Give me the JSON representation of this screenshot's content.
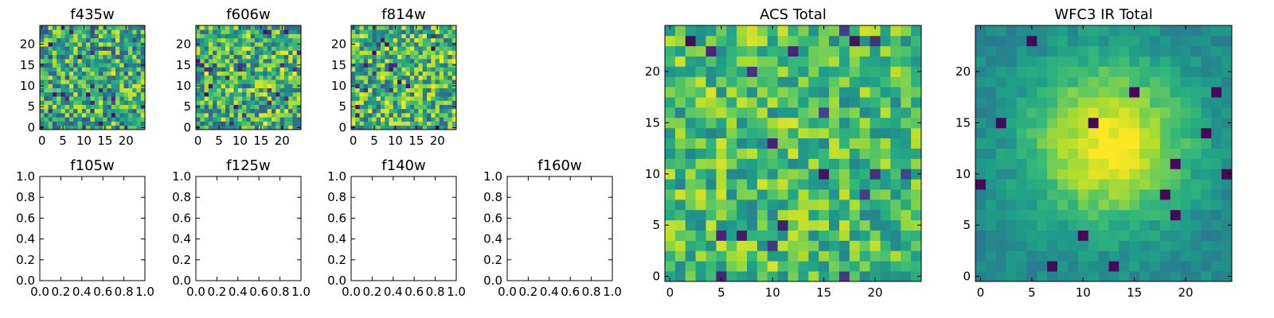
{
  "figure": {
    "colormap": "viridis"
  },
  "chart_data": [
    {
      "id": "f435w",
      "type": "heatmap",
      "title": "f435w",
      "grid_size": 25,
      "xlim": [
        -0.5,
        24.5
      ],
      "ylim": [
        -0.5,
        24.5
      ],
      "xticks": [
        0,
        5,
        10,
        15,
        20
      ],
      "yticks": [
        0,
        5,
        10,
        15,
        20
      ],
      "pattern": "noise",
      "seed": 11,
      "vrange": [
        0.25,
        0.95
      ]
    },
    {
      "id": "f606w",
      "type": "heatmap",
      "title": "f606w",
      "grid_size": 25,
      "xlim": [
        -0.5,
        24.5
      ],
      "ylim": [
        -0.5,
        24.5
      ],
      "xticks": [
        0,
        5,
        10,
        15,
        20
      ],
      "yticks": [
        0,
        5,
        10,
        15,
        20
      ],
      "pattern": "noise",
      "seed": 23,
      "vrange": [
        0.3,
        1.0
      ]
    },
    {
      "id": "f814w",
      "type": "heatmap",
      "title": "f814w",
      "grid_size": 25,
      "xlim": [
        -0.5,
        24.5
      ],
      "ylim": [
        -0.5,
        24.5
      ],
      "xticks": [
        0,
        5,
        10,
        15,
        20
      ],
      "yticks": [
        0,
        5,
        10,
        15,
        20
      ],
      "pattern": "noise",
      "seed": 37,
      "vrange": [
        0.3,
        1.0
      ]
    },
    {
      "id": "f105w",
      "type": "empty",
      "title": "f105w",
      "xlim": [
        0,
        1
      ],
      "ylim": [
        0,
        1
      ],
      "xticks": [
        "0.0",
        "0.2",
        "0.4",
        "0.6",
        "0.8",
        "1.0"
      ],
      "yticks": [
        "0.0",
        "0.2",
        "0.4",
        "0.6",
        "0.8",
        "1.0"
      ]
    },
    {
      "id": "f125w",
      "type": "empty",
      "title": "f125w",
      "xlim": [
        0,
        1
      ],
      "ylim": [
        0,
        1
      ],
      "xticks": [
        "0.0",
        "0.2",
        "0.4",
        "0.6",
        "0.8",
        "1.0"
      ],
      "yticks": [
        "0.0",
        "0.2",
        "0.4",
        "0.6",
        "0.8",
        "1.0"
      ]
    },
    {
      "id": "f140w",
      "type": "empty",
      "title": "f140w",
      "xlim": [
        0,
        1
      ],
      "ylim": [
        0,
        1
      ],
      "xticks": [
        "0.0",
        "0.2",
        "0.4",
        "0.6",
        "0.8",
        "1.0"
      ],
      "yticks": [
        "0.0",
        "0.2",
        "0.4",
        "0.6",
        "0.8",
        "1.0"
      ]
    },
    {
      "id": "f160w",
      "type": "empty",
      "title": "f160w",
      "xlim": [
        0,
        1
      ],
      "ylim": [
        0,
        1
      ],
      "xticks": [
        "0.0",
        "0.2",
        "0.4",
        "0.6",
        "0.8",
        "1.0"
      ],
      "yticks": [
        "0.0",
        "0.2",
        "0.4",
        "0.6",
        "0.8",
        "1.0"
      ]
    },
    {
      "id": "acs-total",
      "type": "heatmap",
      "title": "ACS Total",
      "grid_size": 25,
      "xlim": [
        -0.5,
        24.5
      ],
      "ylim": [
        -0.5,
        24.5
      ],
      "xticks": [
        0,
        5,
        10,
        15,
        20
      ],
      "yticks": [
        0,
        5,
        10,
        15,
        20
      ],
      "pattern": "noise",
      "seed": 53,
      "vrange": [
        0.45,
        0.95
      ]
    },
    {
      "id": "wfc3-ir-total",
      "type": "heatmap",
      "title": "WFC3 IR Total",
      "grid_size": 25,
      "xlim": [
        -0.5,
        24.5
      ],
      "ylim": [
        -0.5,
        24.5
      ],
      "xticks": [
        0,
        5,
        10,
        15,
        20
      ],
      "yticks": [
        0,
        5,
        10,
        15,
        20
      ],
      "pattern": "gaussian",
      "seed": 71,
      "peak": [
        12.5,
        13.0
      ],
      "sigma": 5.5,
      "vrange": [
        0.28,
        1.0
      ]
    }
  ]
}
